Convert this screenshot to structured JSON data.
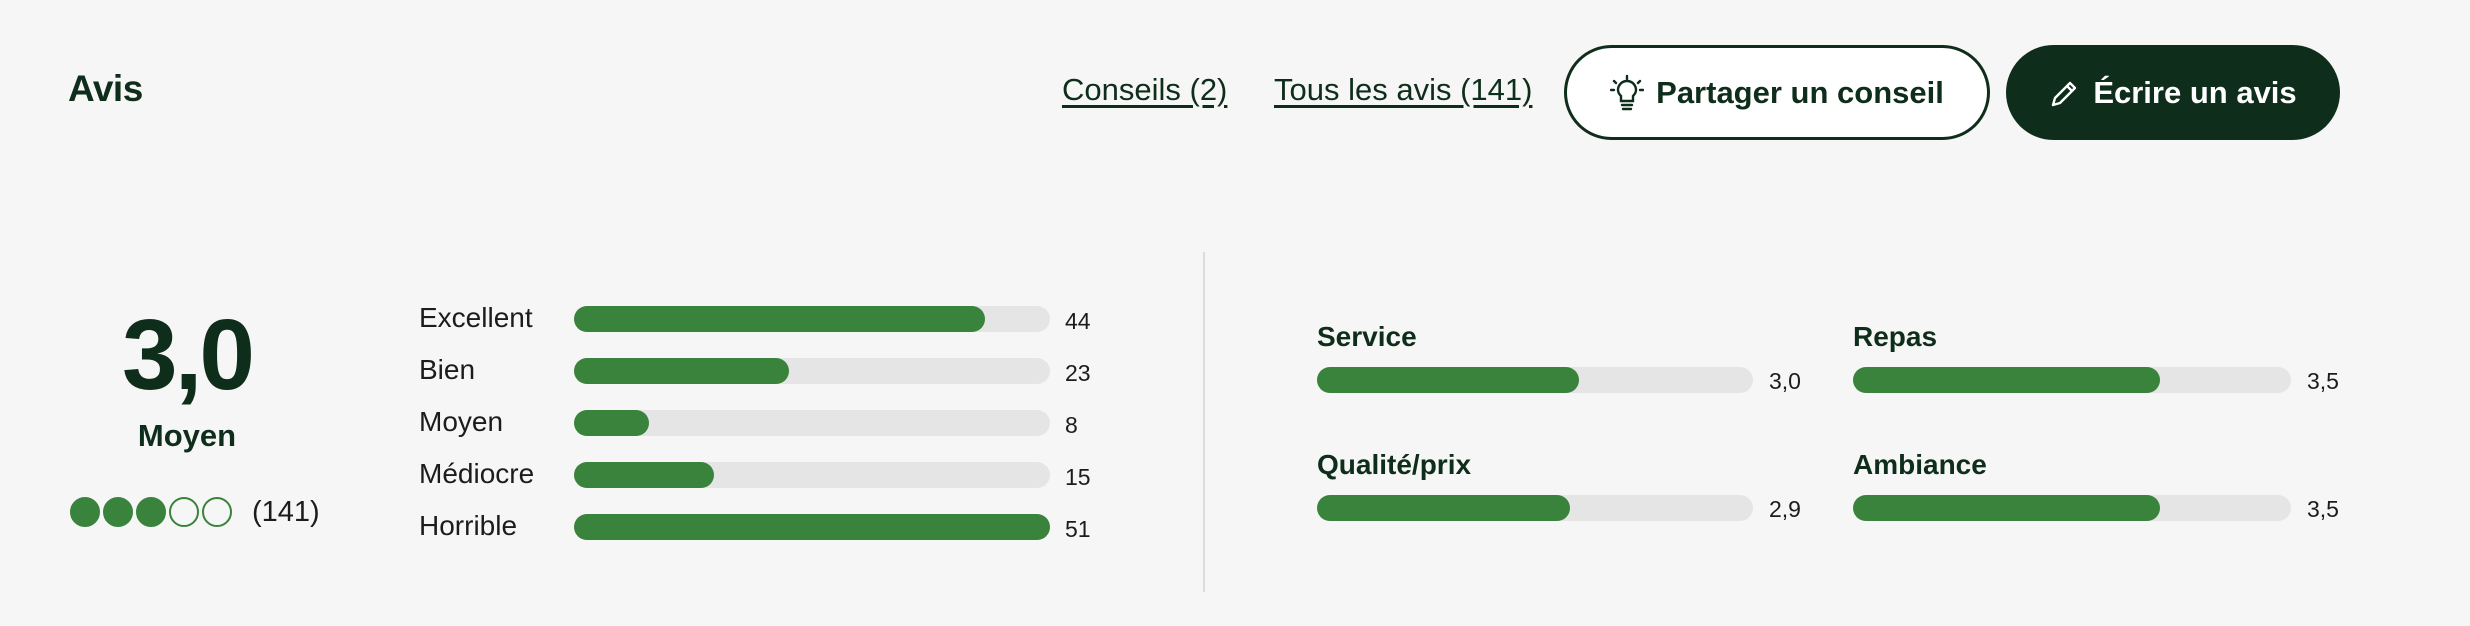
{
  "header": {
    "title": "Avis",
    "links": [
      "Conseils (2)",
      "Tous les avis (141)"
    ],
    "buttons": [
      "Partager un conseil",
      "Écrire un avis"
    ]
  },
  "rating": {
    "score": {
      "value": 3.0,
      "label": "3,0"
    },
    "verdict": "Moyen",
    "count": {
      "value": 141,
      "label": "(141)"
    }
  },
  "distribution": {
    "categories": [
      "Excellent",
      "Bien",
      "Moyen",
      "Médiocre",
      "Horrible"
    ],
    "values": [
      44,
      23,
      8,
      15,
      51
    ]
  },
  "subratings": {
    "categories": [
      "Service",
      "Repas",
      "Qualité/prix",
      "Ambiance"
    ],
    "values": [
      {
        "value": 3.0,
        "label": "3,0"
      },
      {
        "value": 3.5,
        "label": "3,5"
      },
      {
        "value": 2.9,
        "label": "2,9"
      },
      {
        "value": 3.5,
        "label": "3,5"
      }
    ]
  }
}
